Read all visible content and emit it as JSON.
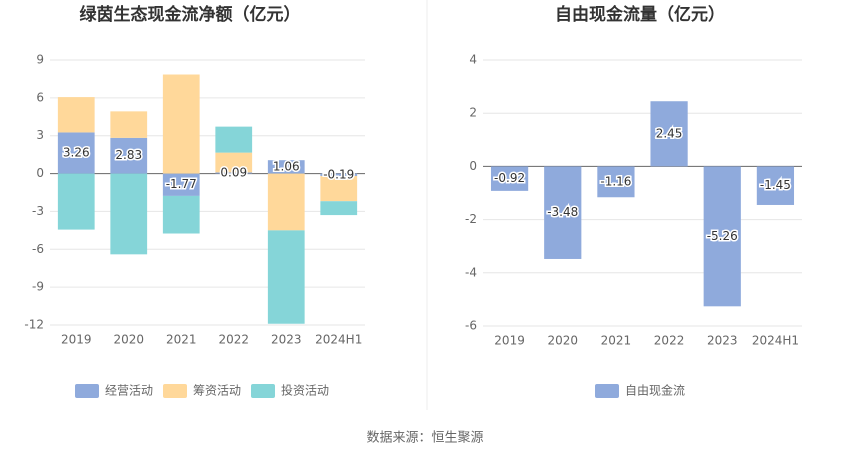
{
  "chart_data": [
    {
      "type": "stacked_bar",
      "title": "绿茵生态现金流净额（亿元）",
      "categories": [
        "2019",
        "2020",
        "2021",
        "2022",
        "2023",
        "2024H1"
      ],
      "series": [
        {
          "name": "经营活动",
          "color": "#8faadc",
          "values": [
            3.26,
            2.83,
            -1.77,
            0.09,
            1.06,
            -0.19
          ],
          "labels": true
        },
        {
          "name": "筹资活动",
          "color": "#ffd89a",
          "values": [
            2.8,
            2.1,
            7.85,
            1.57,
            -4.5,
            -2.0
          ]
        },
        {
          "name": "投资活动",
          "color": "#85d5d8",
          "values": [
            -4.44,
            -6.4,
            -2.98,
            2.06,
            -7.4,
            -1.1
          ]
        }
      ],
      "ylim": [
        -12,
        9
      ],
      "yticks": [
        -12,
        -9,
        -6,
        -3,
        0,
        3,
        6,
        9
      ],
      "grid": true
    },
    {
      "type": "bar",
      "title": "自由现金流量（亿元）",
      "categories": [
        "2019",
        "2020",
        "2021",
        "2022",
        "2023",
        "2024H1"
      ],
      "series": [
        {
          "name": "自由现金流",
          "color": "#8faadc",
          "values": [
            -0.92,
            -3.48,
            -1.16,
            2.45,
            -5.26,
            -1.45
          ],
          "labels": true
        }
      ],
      "ylim": [
        -6,
        4
      ],
      "yticks": [
        -6,
        -4,
        -2,
        0,
        2,
        4
      ],
      "grid": true
    }
  ],
  "source": "数据来源：恒生聚源"
}
